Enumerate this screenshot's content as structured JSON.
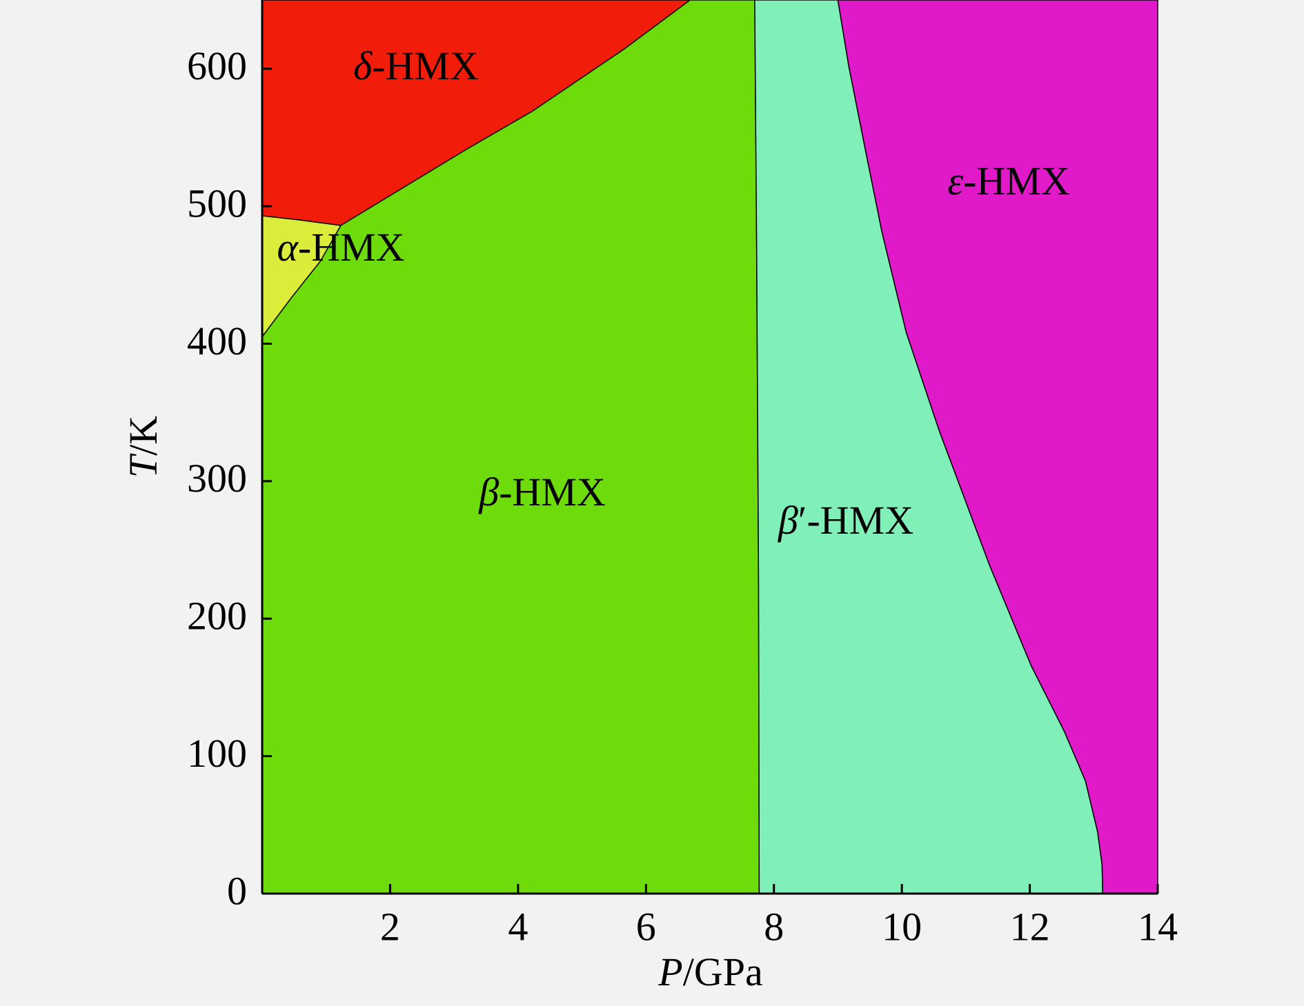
{
  "chart_data": {
    "type": "area",
    "xlabel": "P/GPa",
    "ylabel": "T/K",
    "xlim": [
      0,
      14
    ],
    "xticks": [
      2,
      4,
      6,
      8,
      10,
      12,
      14
    ],
    "ylim": [
      0,
      650
    ],
    "yticks": [
      0,
      100,
      200,
      300,
      400,
      500,
      600
    ],
    "regions": [
      {
        "name": "δ-HMX",
        "color": "#f21c0a",
        "x": [
          0,
          0,
          0.58,
          1.23,
          3.18,
          4.22,
          5.65,
          6.69
        ],
        "y": [
          650,
          493,
          490,
          486,
          541,
          569,
          614,
          650
        ]
      },
      {
        "name": "α-HMX",
        "color": "#dcec3a",
        "x": [
          0,
          0.58,
          1.23,
          0.91,
          0.45,
          0
        ],
        "y": [
          493,
          490,
          486,
          460,
          433,
          405
        ]
      },
      {
        "name": "β-HMX",
        "color": "#6ddc0a",
        "x": [
          0,
          0.45,
          0.91,
          1.23,
          3.18,
          4.22,
          5.65,
          6.69,
          7.7,
          7.73,
          7.76,
          7.77,
          0
        ],
        "y": [
          405,
          433,
          460,
          486,
          541,
          569,
          614,
          650,
          650,
          469,
          227,
          0,
          0
        ]
      },
      {
        "name": "β′-HMX",
        "color": "#80f0b8",
        "x": [
          7.7,
          9.0,
          9.17,
          9.43,
          9.69,
          10.07,
          10.59,
          11.37,
          12.02,
          12.54,
          12.87,
          13.06,
          13.13,
          13.14,
          7.77,
          7.76,
          7.73
        ],
        "y": [
          650,
          650,
          602,
          541,
          481,
          408,
          336,
          239,
          166,
          118,
          82,
          45,
          21,
          0,
          0,
          227,
          469
        ]
      },
      {
        "name": "ε-HMX",
        "color": "#e01ac8",
        "x": [
          9.0,
          14,
          14,
          13.14,
          13.13,
          13.06,
          12.87,
          12.54,
          12.02,
          11.37,
          10.59,
          10.07,
          9.69,
          9.43,
          9.17
        ],
        "y": [
          650,
          650,
          0,
          0,
          21,
          45,
          82,
          118,
          166,
          239,
          336,
          408,
          481,
          541,
          602
        ]
      }
    ]
  }
}
